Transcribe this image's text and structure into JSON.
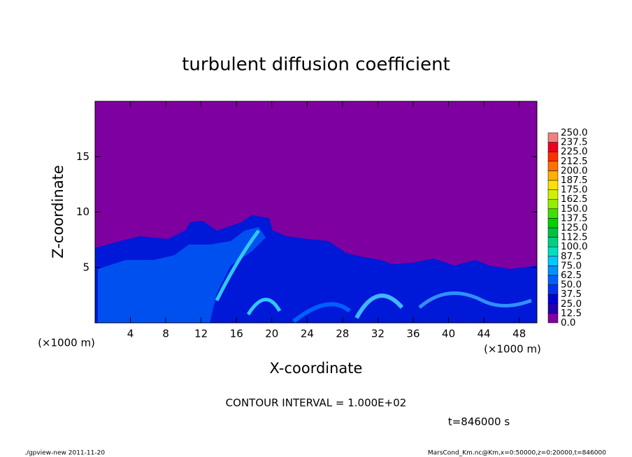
{
  "chart_data": {
    "type": "contour",
    "title": "turbulent diffusion coefficient",
    "x_label": "X-coordinate",
    "y_label": "Z-coordinate",
    "x_unit": "(×1000 m)",
    "y_unit": "(×1000 m)",
    "xlim": [
      0,
      50
    ],
    "xticks": [
      4,
      8,
      12,
      16,
      20,
      24,
      28,
      32,
      36,
      40,
      44,
      48
    ],
    "ylim": [
      0,
      20
    ],
    "yticks": [
      5,
      10,
      15
    ],
    "background_color": "#7f00a0",
    "colorbar": {
      "levels": [
        {
          "value": 0,
          "label": "0.0"
        },
        12.5,
        {
          "value": 25,
          "label": "25.0"
        },
        37.5,
        {
          "value": 50,
          "label": "50.0"
        },
        62.5,
        {
          "value": 75,
          "label": "75.0"
        },
        87.5,
        {
          "value": 100,
          "label": "100.0"
        },
        112.5,
        {
          "value": 125,
          "label": "125.0"
        },
        137.5,
        {
          "value": 150,
          "label": "150.0"
        },
        162.5,
        {
          "value": 175,
          "label": "175.0"
        },
        187.5,
        {
          "value": 200,
          "label": "200.0"
        },
        212.5,
        {
          "value": 225,
          "label": "225.0"
        },
        237.5,
        {
          "value": 250,
          "label": "250.0"
        }
      ],
      "colors": [
        "#7f00a0",
        "#2200b0",
        "#0000d0",
        "#0030f0",
        "#0060ff",
        "#0090ff",
        "#00c8ff",
        "#00e0c0",
        "#00d080",
        "#00c040",
        "#00d000",
        "#40e000",
        "#90f000",
        "#d0f000",
        "#ffe000",
        "#ffb000",
        "#ff7000",
        "#ff3000",
        "#f00020",
        "#f08080"
      ]
    },
    "contour_interval": "CONTOUR INTERVAL = 1.000E+02",
    "time_label": "t=846000 s",
    "footer_left": "./gpview-new  2011-11-20",
    "footer_right": "MarsCond_Km.nc@Km,x=0:50000,z=0:20000,t=846000"
  }
}
